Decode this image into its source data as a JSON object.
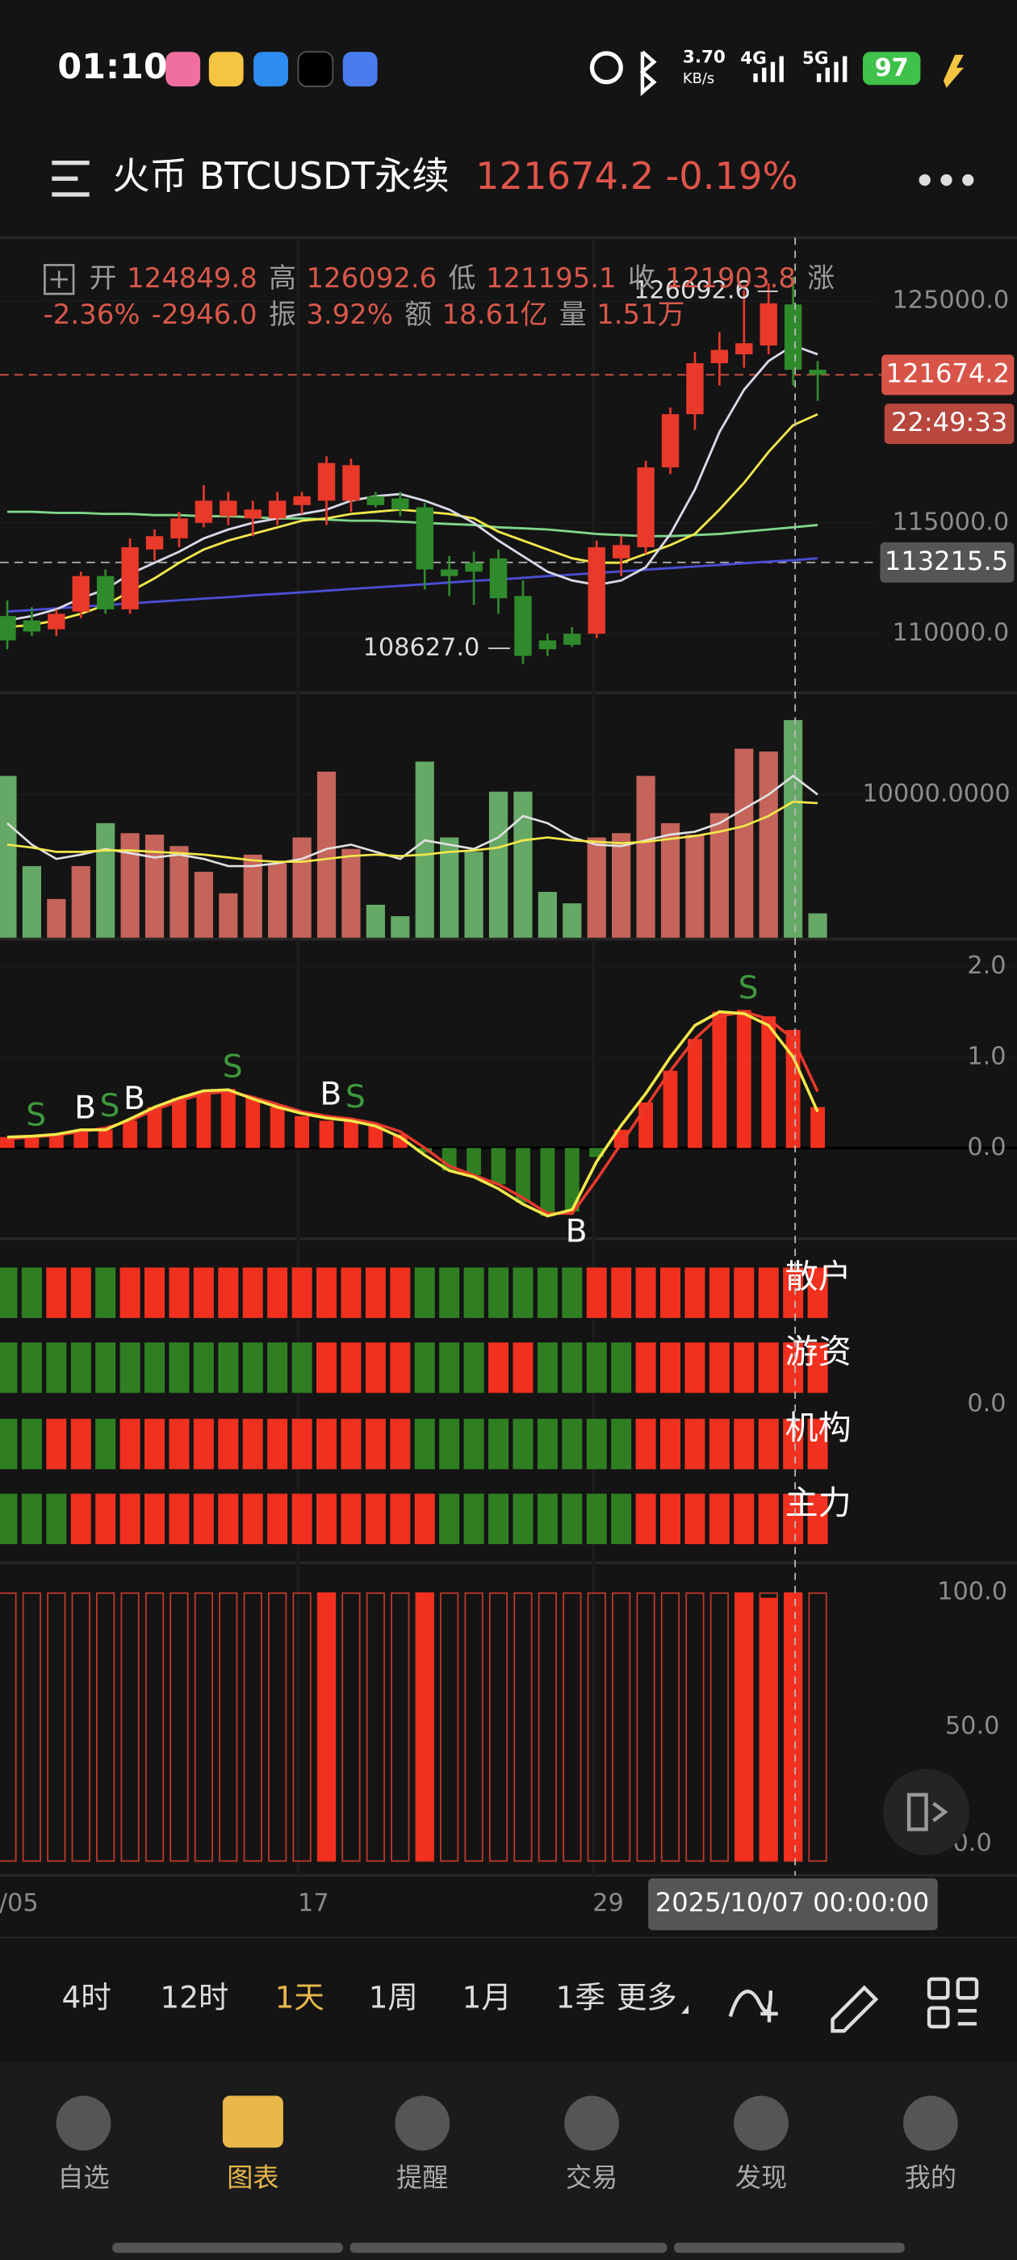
{
  "status_bar": {
    "time": "01:10",
    "speed": "3.70",
    "speed_unit": "KB/s",
    "net1": "4G",
    "net2": "5G",
    "battery": "97"
  },
  "header": {
    "title": "火币 BTCUSDT永续",
    "price": "121674.2",
    "change": "-0.19%"
  },
  "info": [
    {
      "label": "开",
      "value": "124849.8"
    },
    {
      "label": "高",
      "value": "126092.6"
    },
    {
      "label": "低",
      "value": "121195.1"
    },
    {
      "label": "收",
      "value": "121903.8"
    },
    {
      "label": "涨",
      "value": "-2.36%"
    },
    {
      "value": "-2946.0"
    },
    {
      "label": "振",
      "value": "3.92%"
    },
    {
      "label": "额",
      "value": "18.61亿"
    },
    {
      "label": "量",
      "value": "1.51万"
    }
  ],
  "chart_data": {
    "type": "candlestick",
    "categories": [
      "/05",
      null,
      null,
      null,
      null,
      null,
      null,
      null,
      null,
      null,
      null,
      null,
      "17",
      null,
      null,
      null,
      null,
      null,
      null,
      null,
      null,
      null,
      null,
      null,
      "29",
      null,
      null,
      null,
      null,
      null,
      null,
      null,
      null,
      null
    ],
    "candles": [
      [
        110800,
        111500,
        109300,
        109700
      ],
      [
        110600,
        111200,
        109900,
        110100
      ],
      [
        110200,
        111100,
        109900,
        110900
      ],
      [
        111000,
        112800,
        110700,
        112600
      ],
      [
        112600,
        112900,
        110900,
        111100
      ],
      [
        111100,
        114300,
        110900,
        113900
      ],
      [
        113800,
        114700,
        113300,
        114400
      ],
      [
        114300,
        115500,
        113900,
        115200
      ],
      [
        115000,
        116700,
        114800,
        116000
      ],
      [
        115300,
        116400,
        114900,
        116000
      ],
      [
        115200,
        116000,
        114400,
        115600
      ],
      [
        115200,
        116400,
        114900,
        116000
      ],
      [
        115800,
        116400,
        115400,
        116200
      ],
      [
        116000,
        118000,
        114900,
        117700
      ],
      [
        116000,
        117900,
        115500,
        117600
      ],
      [
        116200,
        116400,
        115700,
        115800
      ],
      [
        116100,
        116400,
        115300,
        115600
      ],
      [
        115700,
        115900,
        112000,
        112900
      ],
      [
        112900,
        113500,
        111700,
        112600
      ],
      [
        113200,
        113700,
        111300,
        112800
      ],
      [
        113400,
        113800,
        110900,
        111600
      ],
      [
        111700,
        112400,
        108627,
        109000
      ],
      [
        109700,
        110000,
        109000,
        109300
      ],
      [
        110000,
        110300,
        109400,
        109500
      ],
      [
        110000,
        114200,
        109800,
        113900
      ],
      [
        113400,
        114400,
        112600,
        114000
      ],
      [
        113900,
        117800,
        113600,
        117500
      ],
      [
        117500,
        120200,
        117200,
        119900
      ],
      [
        119900,
        122700,
        119200,
        122200
      ],
      [
        122200,
        123600,
        121200,
        122800
      ],
      [
        122600,
        125500,
        122000,
        123100
      ],
      [
        123000,
        125800,
        122600,
        124900
      ],
      [
        124849.8,
        126092.6,
        121195.1,
        121903.8
      ],
      [
        121903.8,
        122300,
        120500,
        121674.2
      ]
    ],
    "up_color": "#e8392b",
    "down_color": "#2f8a2c",
    "ylim": [
      107400,
      127860
    ],
    "yticks": [
      {
        "value": 110000,
        "label": "110000.0"
      },
      {
        "value": 115000,
        "label": "115000.0"
      },
      {
        "value": 125000,
        "label": "125000.0"
      }
    ],
    "ma_lines": [
      {
        "color": "#4b4fd6",
        "values": [
          111000,
          111070,
          111150,
          111220,
          111290,
          111360,
          111440,
          111510,
          111580,
          111650,
          111730,
          111800,
          111870,
          111940,
          112020,
          112090,
          112160,
          112230,
          112310,
          112380,
          112450,
          112520,
          112600,
          112670,
          112740,
          112810,
          112890,
          112960,
          113030,
          113100,
          113180,
          113250,
          113320,
          113400
        ]
      },
      {
        "color": "#7fd88a",
        "values": [
          115500,
          115500,
          115450,
          115450,
          115400,
          115400,
          115350,
          115350,
          115300,
          115300,
          115250,
          115200,
          115200,
          115150,
          115100,
          115100,
          115050,
          115000,
          114950,
          114900,
          114800,
          114750,
          114700,
          114600,
          114500,
          114450,
          114400,
          114400,
          114450,
          114500,
          114600,
          114700,
          114800,
          114900
        ]
      },
      {
        "color": "#f2e84a",
        "values": [
          110300,
          110400,
          110600,
          110900,
          111300,
          111900,
          112500,
          113200,
          113800,
          114200,
          114500,
          114800,
          115100,
          115200,
          115400,
          115500,
          115600,
          115500,
          115400,
          115200,
          114600,
          114200,
          113800,
          113400,
          113200,
          113200,
          113600,
          114000,
          114500,
          115600,
          116800,
          118200,
          119400,
          119900
        ]
      },
      {
        "color": "#d8d8e8",
        "values": [
          110600,
          110800,
          111100,
          111600,
          112000,
          112700,
          113200,
          113700,
          114300,
          114700,
          115000,
          115200,
          115400,
          115600,
          116000,
          116200,
          116300,
          116000,
          115600,
          115000,
          114200,
          113500,
          112800,
          112400,
          112200,
          112400,
          113000,
          114500,
          116500,
          119100,
          121000,
          122300,
          123000,
          122600
        ]
      }
    ],
    "current_price": 121674.2,
    "countdown": "22:49:33",
    "cursor_price": 113215.5,
    "high_marker": 126092.6,
    "low_marker": {
      "value": 108627,
      "label": "108627.0"
    },
    "cursor_label": "2025/10/07 00:00:00",
    "volume": {
      "values": [
        11300,
        5000,
        2700,
        5000,
        8000,
        7300,
        7200,
        6400,
        4600,
        3100,
        5800,
        5200,
        7000,
        11600,
        6200,
        2300,
        1500,
        12300,
        7000,
        6000,
        10200,
        10200,
        3200,
        2400,
        7000,
        7300,
        11300,
        8000,
        7200,
        8700,
        13200,
        13000,
        15200,
        1700
      ],
      "up_color": "#c4645a",
      "down_color": "#66a866",
      "ylim": [
        0,
        17000
      ],
      "yticks": [
        {
          "value": 10000,
          "label": "10000.0000"
        }
      ],
      "lines": [
        {
          "color": "#e0e0e0",
          "values": [
            8000,
            6500,
            5500,
            5800,
            6200,
            5900,
            5600,
            5800,
            5500,
            5000,
            5000,
            5200,
            5500,
            6200,
            6500,
            6000,
            5500,
            6800,
            6500,
            6200,
            7000,
            8500,
            8000,
            7000,
            6500,
            6400,
            6800,
            7200,
            7400,
            8000,
            9000,
            10000,
            11300,
            10000
          ]
        },
        {
          "color": "#f2e84a",
          "values": [
            6500,
            6300,
            6000,
            6000,
            6100,
            6100,
            6000,
            5900,
            5800,
            5600,
            5400,
            5300,
            5300,
            5500,
            5700,
            5800,
            5700,
            5800,
            6000,
            6100,
            6300,
            6800,
            7000,
            6800,
            6700,
            6600,
            6700,
            6900,
            7100,
            7400,
            7800,
            8500,
            9500,
            9400
          ]
        }
      ]
    },
    "macd": {
      "ylim": [
        -1.0,
        2.3
      ],
      "yticks": [
        {
          "value": 0,
          "label": "0.0"
        },
        {
          "value": 1,
          "label": "1.0"
        },
        {
          "value": 2,
          "label": "2.0"
        }
      ],
      "up_color": "#f2301f",
      "down_color": "#2f7f22",
      "histogram": [
        0.12,
        0.12,
        0.15,
        0.2,
        0.2,
        0.3,
        0.45,
        0.55,
        0.62,
        0.65,
        0.55,
        0.45,
        0.35,
        0.3,
        0.3,
        0.25,
        0.15,
        -0.05,
        -0.25,
        -0.3,
        -0.4,
        -0.6,
        -0.75,
        -0.7,
        -0.1,
        0.2,
        0.5,
        0.85,
        1.2,
        1.5,
        1.52,
        1.45,
        1.3,
        0.45
      ],
      "lines": [
        {
          "color": "#e8392b",
          "values": [
            0.1,
            0.12,
            0.14,
            0.18,
            0.22,
            0.3,
            0.42,
            0.52,
            0.6,
            0.62,
            0.56,
            0.48,
            0.4,
            0.35,
            0.32,
            0.27,
            0.18,
            0.0,
            -0.2,
            -0.3,
            -0.4,
            -0.55,
            -0.72,
            -0.72,
            -0.35,
            0.05,
            0.45,
            0.85,
            1.2,
            1.45,
            1.5,
            1.42,
            1.2,
            0.62
          ]
        },
        {
          "color": "#f2e84a",
          "values": [
            0.12,
            0.13,
            0.15,
            0.2,
            0.2,
            0.32,
            0.45,
            0.55,
            0.63,
            0.64,
            0.54,
            0.45,
            0.38,
            0.33,
            0.3,
            0.24,
            0.12,
            -0.08,
            -0.25,
            -0.32,
            -0.45,
            -0.62,
            -0.75,
            -0.68,
            -0.15,
            0.25,
            0.6,
            1.0,
            1.35,
            1.5,
            1.48,
            1.35,
            1.0,
            0.4
          ]
        }
      ],
      "signals": [
        null,
        {
          "label": "S",
          "color": "#3d9a3d"
        },
        null,
        {
          "label": "B",
          "color": "#ffffff"
        },
        {
          "label": "S",
          "color": "#3d9a3d"
        },
        {
          "label": "B",
          "color": "#ffffff"
        },
        null,
        null,
        null,
        {
          "label": "S",
          "color": "#3d9a3d"
        },
        null,
        null,
        null,
        {
          "label": "B",
          "color": "#ffffff"
        },
        {
          "label": "S",
          "color": "#3d9a3d"
        },
        null,
        null,
        null,
        null,
        null,
        null,
        null,
        null,
        {
          "label": "B",
          "color": "#ffffff"
        },
        null,
        null,
        null,
        null,
        null,
        null,
        {
          "label": "S",
          "color": "#3d9a3d"
        },
        null,
        null,
        null
      ]
    },
    "funds": {
      "tick": {
        "value": 0,
        "label": "0.0"
      },
      "up_color": "#f2301f",
      "down_color": "#2f7f22",
      "rows": [
        {
          "name": "散户",
          "values": [
            -1,
            -1,
            1,
            1,
            -1,
            1,
            1,
            1,
            1,
            1,
            1,
            1,
            1,
            1,
            1,
            1,
            1,
            -1,
            -1,
            -1,
            -1,
            -1,
            -1,
            -1,
            1,
            1,
            1,
            1,
            1,
            1,
            1,
            1,
            1,
            1
          ]
        },
        {
          "name": "游资",
          "values": [
            -1,
            -1,
            -1,
            -1,
            -1,
            -1,
            -1,
            -1,
            -1,
            -1,
            -1,
            -1,
            -1,
            1,
            1,
            1,
            1,
            -1,
            -1,
            -1,
            1,
            1,
            -1,
            -1,
            -1,
            -1,
            1,
            1,
            1,
            1,
            1,
            1,
            1,
            1
          ]
        },
        {
          "name": "机构",
          "values": [
            -1,
            -1,
            1,
            1,
            -1,
            1,
            1,
            1,
            1,
            1,
            1,
            1,
            1,
            1,
            1,
            1,
            1,
            -1,
            -1,
            -1,
            -1,
            -1,
            -1,
            -1,
            -1,
            -1,
            1,
            1,
            1,
            1,
            1,
            1,
            1,
            1
          ]
        },
        {
          "name": "主力",
          "values": [
            -1,
            -1,
            -1,
            1,
            1,
            1,
            1,
            1,
            1,
            1,
            1,
            1,
            1,
            1,
            1,
            1,
            1,
            1,
            -1,
            -1,
            -1,
            -1,
            -1,
            -1,
            -1,
            -1,
            1,
            1,
            1,
            1,
            1,
            1,
            1,
            1
          ]
        }
      ]
    },
    "signal_bars": {
      "color": "#f2301f",
      "ylim": [
        0,
        111
      ],
      "yticks": [
        {
          "value": 0,
          "label": "0.0"
        },
        {
          "value": 50,
          "label": "50.0"
        },
        {
          "value": 100,
          "label": "100.0"
        }
      ],
      "values": [
        0,
        0,
        0,
        0,
        0,
        0,
        0,
        0,
        0,
        0,
        0,
        0,
        0,
        100,
        0,
        0,
        0,
        100,
        0,
        0,
        0,
        0,
        0,
        0,
        0,
        0,
        0,
        0,
        0,
        0,
        100,
        98,
        100,
        0
      ]
    }
  },
  "toolbar": {
    "intervals": [
      "4时",
      "12时",
      "1天",
      "1周",
      "1月",
      "1季",
      "更多"
    ],
    "selected": 2
  },
  "tabs": {
    "items": [
      "自选",
      "图表",
      "提醒",
      "交易",
      "发现",
      "我的"
    ],
    "selected": 1
  }
}
